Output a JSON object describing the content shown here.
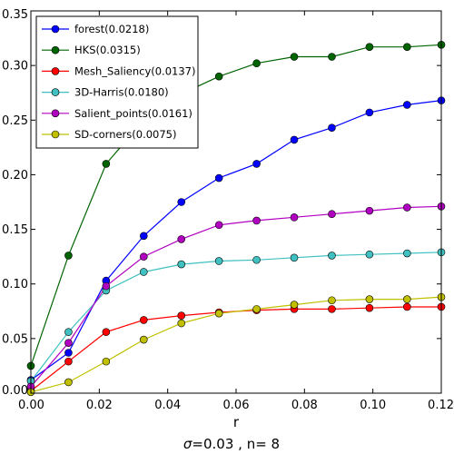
{
  "chart_data": {
    "type": "line",
    "xlabel": "r",
    "caption_sigma": "σ",
    "caption": "=0.03  , n= 8",
    "xlim": [
      0.0,
      0.12
    ],
    "ylim": [
      0.0,
      0.35
    ],
    "xticks": [
      "0.00",
      "0.02",
      "0.04",
      "0.06",
      "0.08",
      "0.10",
      "0.12"
    ],
    "xtick_values": [
      0.0,
      0.02,
      0.04,
      0.06,
      0.08,
      0.1,
      0.12
    ],
    "yticks": [
      "0.00",
      "0.05",
      "0.10",
      "0.15",
      "0.20",
      "0.25",
      "0.30",
      "0.35"
    ],
    "ytick_values": [
      0.0,
      0.05,
      0.1,
      0.15,
      0.2,
      0.25,
      0.3,
      0.35
    ],
    "grid": false,
    "legend_position": "top-left",
    "x": [
      0.0,
      0.011,
      0.022,
      0.033,
      0.044,
      0.055,
      0.066,
      0.077,
      0.088,
      0.099,
      0.11,
      0.12
    ],
    "series": [
      {
        "name": "forest(0.0218)",
        "color": "#0000ff",
        "values": [
          0.012,
          0.037,
          0.103,
          0.144,
          0.175,
          0.197,
          0.21,
          0.232,
          0.243,
          0.257,
          0.264,
          0.268
        ]
      },
      {
        "name": "HKS(0.0315)",
        "color": "#006400",
        "values": [
          0.025,
          0.126,
          0.21,
          0.25,
          0.274,
          0.29,
          0.302,
          0.308,
          0.308,
          0.317,
          0.317,
          0.319
        ]
      },
      {
        "name": "Mesh_Saliency(0.0137)",
        "color": "#ff0000",
        "values": [
          0.002,
          0.029,
          0.056,
          0.067,
          0.071,
          0.074,
          0.076,
          0.077,
          0.077,
          0.078,
          0.079,
          0.079
        ]
      },
      {
        "name": "3D-Harris(0.0180)",
        "color": "#40c0c0",
        "values": [
          0.011,
          0.056,
          0.094,
          0.111,
          0.118,
          0.121,
          0.122,
          0.124,
          0.126,
          0.127,
          0.128,
          0.129
        ]
      },
      {
        "name": "Salient_points(0.0161)",
        "color": "#b000c0",
        "values": [
          0.006,
          0.046,
          0.098,
          0.125,
          0.141,
          0.154,
          0.158,
          0.161,
          0.164,
          0.167,
          0.17,
          0.171
        ]
      },
      {
        "name": "SD-corners(0.0075)",
        "color": "#c0c000",
        "values": [
          0.001,
          0.01,
          0.029,
          0.049,
          0.064,
          0.073,
          0.077,
          0.081,
          0.085,
          0.086,
          0.086,
          0.088
        ]
      }
    ]
  }
}
